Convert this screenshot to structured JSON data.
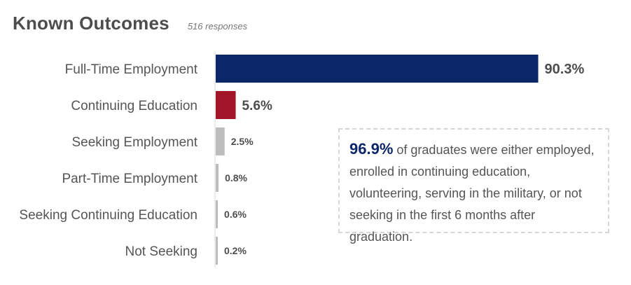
{
  "header": {
    "title": "Known Outcomes",
    "subtitle": "516 responses"
  },
  "chart_data": {
    "type": "bar",
    "orientation": "horizontal",
    "title": "Known Outcomes",
    "subtitle": "516 responses",
    "categories": [
      "Full-Time Employment",
      "Continuing Education",
      "Seeking Employment",
      "Part-Time Employment",
      "Seeking Continuing Education",
      "Not Seeking"
    ],
    "values": [
      90.3,
      5.6,
      2.5,
      0.8,
      0.6,
      0.2
    ],
    "value_labels": [
      "90.3%",
      "5.6%",
      "2.5%",
      "0.8%",
      "0.6%",
      "0.2%"
    ],
    "colors": [
      "#0b2769",
      "#a3162a",
      "#bdbdbd",
      "#bdbdbd",
      "#bdbdbd",
      "#bdbdbd"
    ],
    "xlim": [
      0,
      100
    ],
    "grid": false,
    "legend": "none"
  },
  "callout": {
    "highlight": "96.9%",
    "text": "of graduates were either employed, enrolled in continuing education, volunteering, serving in the military, or not seeking in the first 6 months after graduation.",
    "border_color": "#d6d6d6",
    "highlight_color": "#0b2769"
  }
}
